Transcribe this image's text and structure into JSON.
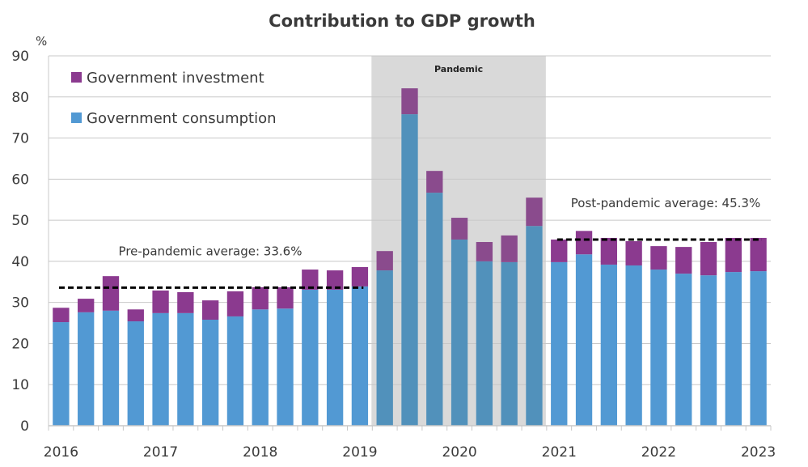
{
  "chart_data": {
    "type": "bar",
    "stacked": true,
    "title": "Contribution to GDP growth",
    "ylabel": "%",
    "xlabel": "",
    "ylim": [
      0,
      90
    ],
    "yticks": [
      0,
      10,
      20,
      30,
      40,
      50,
      60,
      70,
      80,
      90
    ],
    "grid": true,
    "legend_position": "top-left",
    "x_tick_labels": [
      {
        "label": "2016",
        "index": 0
      },
      {
        "label": "2017",
        "index": 4
      },
      {
        "label": "2018",
        "index": 8
      },
      {
        "label": "2019",
        "index": 12
      },
      {
        "label": "2020",
        "index": 16
      },
      {
        "label": "2021",
        "index": 20
      },
      {
        "label": "2022",
        "index": 24
      },
      {
        "label": "2023",
        "index": 28
      }
    ],
    "categories": [
      "2016Q1",
      "2016Q2",
      "2016Q3",
      "2016Q4",
      "2017Q1",
      "2017Q2",
      "2017Q3",
      "2017Q4",
      "2018Q1",
      "2018Q2",
      "2018Q3",
      "2018Q4",
      "2019Q1",
      "2019Q2",
      "2019Q3",
      "2019Q4",
      "2020Q1",
      "2020Q2",
      "2020Q3",
      "2020Q4",
      "2021Q1",
      "2021Q2",
      "2021Q3",
      "2021Q4",
      "2022Q1",
      "2022Q2",
      "2022Q3",
      "2022Q4",
      "2023Q1"
    ],
    "series": [
      {
        "name": "Government consumption",
        "color": "#5299d3",
        "shaded_color": "#5191bb",
        "values": [
          25.2,
          27.6,
          28.0,
          25.4,
          27.4,
          27.4,
          25.8,
          26.6,
          28.3,
          28.5,
          33.1,
          33.1,
          33.9,
          37.8,
          75.8,
          56.7,
          45.3,
          40.0,
          39.8,
          48.6,
          39.8,
          41.7,
          39.2,
          39.0,
          38.0,
          37.0,
          36.6,
          37.4,
          37.6
        ]
      },
      {
        "name": "Government investment",
        "color": "#8b3a8f",
        "shaded_color": "#8a4b8d",
        "values": [
          3.5,
          3.3,
          8.4,
          2.9,
          5.5,
          5.1,
          4.7,
          6.1,
          5.4,
          5.2,
          4.9,
          4.7,
          4.7,
          4.7,
          6.3,
          5.3,
          5.3,
          4.7,
          6.5,
          6.9,
          5.5,
          5.7,
          6.5,
          5.9,
          5.7,
          6.5,
          8.1,
          8.3,
          8.1
        ]
      }
    ],
    "legend": [
      {
        "name": "Government investment",
        "color": "#8b3a8f"
      },
      {
        "name": "Government consumption",
        "color": "#5299d3"
      }
    ],
    "shaded_region": {
      "label": "Pandemic",
      "start_index": 13,
      "end_index": 19,
      "color": "#d9d9d9"
    },
    "reference_lines": [
      {
        "label": "Pre-pandemic average: 33.6%",
        "value": 33.6,
        "start_index": 0,
        "end_index": 12
      },
      {
        "label": "Post-pandemic average: 45.3%",
        "value": 45.3,
        "start_index": 20,
        "end_index": 28
      }
    ]
  }
}
